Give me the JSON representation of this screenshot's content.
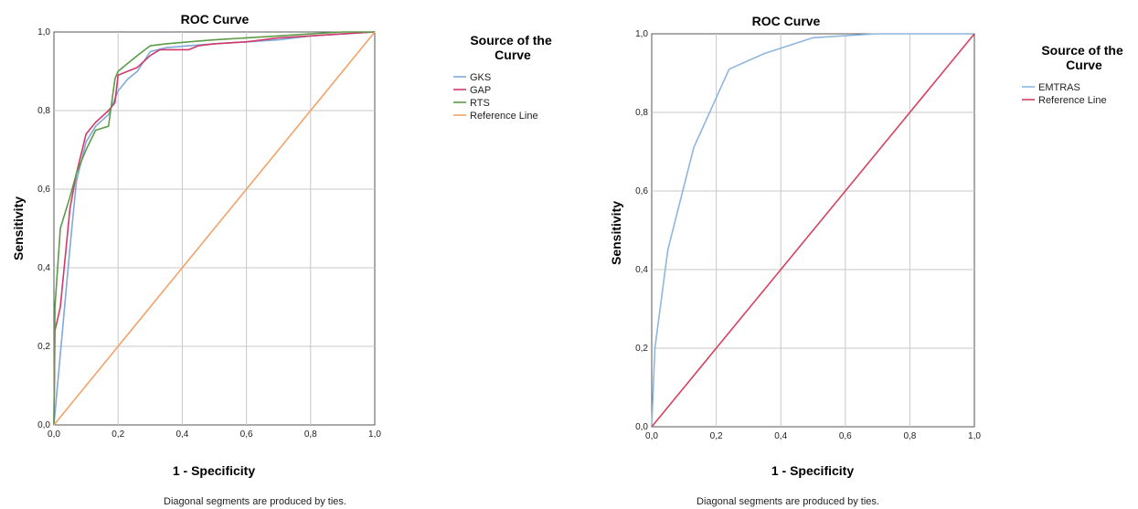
{
  "chart_data": [
    {
      "type": "line",
      "title": "ROC Curve",
      "xlabel": "1 - Specificity",
      "ylabel": "Sensitivity",
      "xlim": [
        0,
        1
      ],
      "ylim": [
        0,
        1
      ],
      "grid": true,
      "ticks": [
        "0,0",
        "0,2",
        "0,4",
        "0,6",
        "0,8",
        "1,0"
      ],
      "tick_values": [
        0,
        0.2,
        0.4,
        0.6,
        0.8,
        1.0
      ],
      "legend_title": "Source of the Curve",
      "legend_position": "right",
      "footnote": "Diagonal segments are produced by ties.",
      "series": [
        {
          "name": "GKS",
          "color": "#7fa9d9",
          "x": [
            0,
            0.02,
            0.05,
            0.07,
            0.1,
            0.13,
            0.17,
            0.2,
            0.23,
            0.26,
            0.3,
            0.35,
            0.42,
            0.5,
            0.6,
            0.7,
            0.8,
            0.9,
            1.0
          ],
          "y": [
            0,
            0.18,
            0.45,
            0.62,
            0.72,
            0.76,
            0.79,
            0.85,
            0.88,
            0.9,
            0.95,
            0.96,
            0.965,
            0.97,
            0.975,
            0.98,
            0.99,
            0.995,
            1.0
          ]
        },
        {
          "name": "GAP",
          "color": "#cf3a6b",
          "x": [
            0,
            0.003,
            0.02,
            0.05,
            0.07,
            0.1,
            0.13,
            0.17,
            0.19,
            0.2,
            0.23,
            0.26,
            0.3,
            0.33,
            0.42,
            0.45,
            0.5,
            0.6,
            0.7,
            0.8,
            0.9,
            1.0
          ],
          "y": [
            0,
            0.24,
            0.3,
            0.55,
            0.64,
            0.74,
            0.77,
            0.8,
            0.82,
            0.89,
            0.9,
            0.91,
            0.94,
            0.955,
            0.955,
            0.965,
            0.97,
            0.975,
            0.985,
            0.99,
            0.995,
            1.0
          ]
        },
        {
          "name": "RTS",
          "color": "#5c9c49",
          "x": [
            0,
            0.003,
            0.02,
            0.05,
            0.07,
            0.1,
            0.13,
            0.17,
            0.19,
            0.2,
            0.23,
            0.26,
            0.3,
            0.35,
            0.42,
            0.5,
            0.6,
            0.7,
            0.8,
            0.9,
            1.0
          ],
          "y": [
            0,
            0.3,
            0.5,
            0.58,
            0.64,
            0.7,
            0.75,
            0.76,
            0.88,
            0.9,
            0.92,
            0.94,
            0.965,
            0.97,
            0.975,
            0.98,
            0.985,
            0.99,
            0.995,
            1.0,
            1.0
          ]
        },
        {
          "name": "Reference Line",
          "color": "#f2a36a",
          "x": [
            0,
            1
          ],
          "y": [
            0,
            1
          ]
        }
      ]
    },
    {
      "type": "line",
      "title": "ROC Curve",
      "xlabel": "1 - Specificity",
      "ylabel": "Sensitivity",
      "xlim": [
        0,
        1
      ],
      "ylim": [
        0,
        1
      ],
      "grid": true,
      "ticks": [
        "0,0",
        "0,2",
        "0,4",
        "0,6",
        "0,8",
        "1,0"
      ],
      "tick_values": [
        0,
        0.2,
        0.4,
        0.6,
        0.8,
        1.0
      ],
      "legend_title": "Source of the Curve",
      "legend_position": "right",
      "footnote": "Diagonal segments are produced by ties.",
      "series": [
        {
          "name": "EMTRAS",
          "color": "#8fb6de",
          "x": [
            0,
            0.01,
            0.05,
            0.13,
            0.24,
            0.35,
            0.5,
            0.6,
            0.7,
            0.8,
            0.9,
            1.0
          ],
          "y": [
            0,
            0.2,
            0.45,
            0.71,
            0.91,
            0.95,
            0.99,
            0.995,
            1.0,
            1.0,
            1.0,
            1.0
          ]
        },
        {
          "name": "Reference Line",
          "color": "#d6425f",
          "x": [
            0,
            1
          ],
          "y": [
            0,
            1
          ]
        }
      ]
    }
  ]
}
